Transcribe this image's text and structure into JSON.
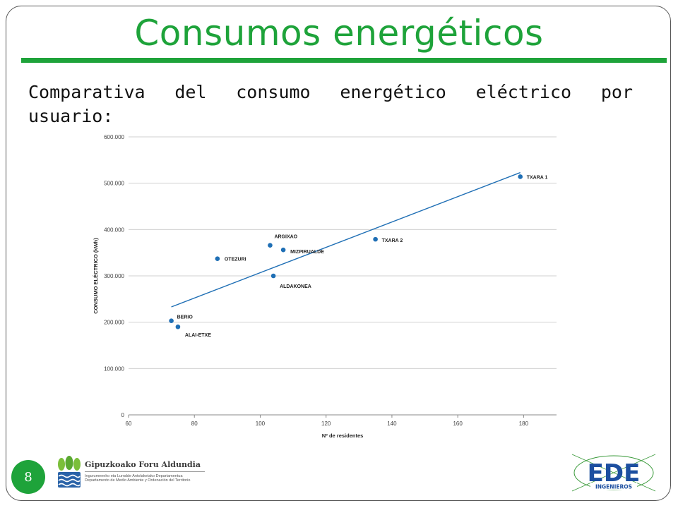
{
  "title": "Consumos energéticos",
  "subtitle": "Comparativa del consumo energético eléctrico por usuario:",
  "page_number": "8",
  "footer": {
    "org_name": "Gipuzkoako Foru Aldundia",
    "dept_basque": "Ingurumeneko eta Lurralde Antolaketako Departamentua",
    "dept_spanish": "Departamento de Medio Ambiente y Ordenación del Territorio",
    "partner_logo_text": "EDE INGENIEROS"
  },
  "chart_data": {
    "type": "scatter",
    "xlabel": "Nº de residentes",
    "ylabel": "CONSUMO ELÉCTRICO (kWh)",
    "xlim": [
      60,
      190
    ],
    "ylim": [
      0,
      600000
    ],
    "xticks": [
      60,
      80,
      100,
      120,
      140,
      160,
      180
    ],
    "yticks": [
      0,
      100000,
      200000,
      300000,
      400000,
      500000,
      600000
    ],
    "xtick_labels": [
      "60",
      "80",
      "100",
      "120",
      "140",
      "160",
      "180"
    ],
    "ytick_labels": [
      "0",
      "100.000",
      "200.000",
      "300.000",
      "400.000",
      "500.000",
      "600.000"
    ],
    "grid": "horizontal",
    "color": "#1f6fb5",
    "points": [
      {
        "label": "BERIO",
        "x": 73,
        "y": 203000
      },
      {
        "label": "ALAI-ETXE",
        "x": 75,
        "y": 190000
      },
      {
        "label": "OTEZURI",
        "x": 87,
        "y": 337000
      },
      {
        "label": "ARGIXAO",
        "x": 103,
        "y": 366000
      },
      {
        "label": "MIZPIRUALDE",
        "x": 107,
        "y": 356000
      },
      {
        "label": "ALDAKONEA",
        "x": 104,
        "y": 300000
      },
      {
        "label": "TXARA 2",
        "x": 135,
        "y": 379000
      },
      {
        "label": "TXARA 1",
        "x": 179,
        "y": 514000
      }
    ],
    "trendline": {
      "x": [
        73,
        179
      ],
      "y": [
        233000,
        523000
      ]
    }
  }
}
